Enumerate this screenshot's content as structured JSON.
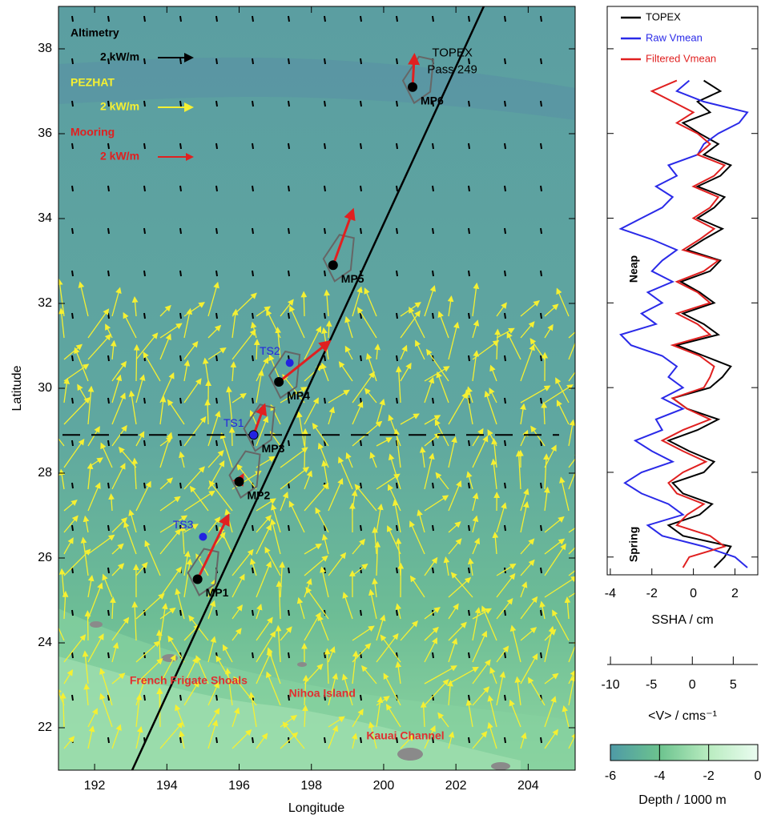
{
  "chart_data": [
    {
      "type": "map",
      "xlabel": "Longitude",
      "ylabel": "Latitude",
      "xlim": [
        191,
        205.3
      ],
      "ylim": [
        21,
        39
      ],
      "xticks": [
        192,
        194,
        196,
        198,
        200,
        202,
        204
      ],
      "yticks": [
        22,
        24,
        26,
        28,
        30,
        32,
        34,
        36,
        38
      ],
      "track": {
        "x": [
          193.04,
          202.77
        ],
        "y": [
          21,
          39
        ],
        "color": "#000000"
      },
      "dashed_latitude": 28.9,
      "legend": [
        {
          "name": "Altimetry",
          "label": "2 kW/m",
          "color": "#000000"
        },
        {
          "name": "PEZHAT",
          "label": "2 kW/m",
          "color": "#f5f032"
        },
        {
          "name": "Mooring",
          "label": "2 kW/m",
          "color": "#e02020"
        }
      ],
      "moorings": [
        {
          "name": "MP1",
          "x": 194.85,
          "y": 25.5,
          "u": 0.85,
          "v": 1.5
        },
        {
          "name": "MP2",
          "x": 196.0,
          "y": 27.8,
          "u": 0.1,
          "v": 0.15
        },
        {
          "name": "MP3",
          "x": 196.4,
          "y": 28.9,
          "u": 0.3,
          "v": 0.7
        },
        {
          "name": "MP4",
          "x": 197.1,
          "y": 30.15,
          "u": 1.4,
          "v": 0.95
        },
        {
          "name": "MP5",
          "x": 198.6,
          "y": 32.9,
          "u": 0.55,
          "v": 1.3
        },
        {
          "name": "MP6",
          "x": 200.8,
          "y": 37.1,
          "u": 0.05,
          "v": 0.75
        }
      ],
      "tide_stations": [
        {
          "name": "TS1",
          "x": 196.4,
          "y": 28.9
        },
        {
          "name": "TS2",
          "x": 197.4,
          "y": 30.6
        },
        {
          "name": "TS3",
          "x": 195.0,
          "y": 26.5
        }
      ],
      "places": [
        {
          "text": "TOPEX",
          "x": 201.9,
          "y": 37.9,
          "color": "#000000"
        },
        {
          "text": "Pass 249",
          "x": 201.9,
          "y": 37.5,
          "color": "#000000"
        },
        {
          "text": "French Frigate Shoals",
          "x": 194.6,
          "y": 23.1,
          "color": "#e03030"
        },
        {
          "text": "Nihoa Island",
          "x": 198.3,
          "y": 22.8,
          "color": "#e03030"
        },
        {
          "text": "Kauai Channel",
          "x": 200.6,
          "y": 21.8,
          "color": "#e03030"
        }
      ]
    },
    {
      "type": "profile",
      "xlabel": "SSHA / cm",
      "xlim": [
        -4.15,
        3.1
      ],
      "xticks": [
        -4,
        -2,
        0,
        2
      ],
      "ylim": [
        25.58,
        39
      ],
      "yticks": [
        26,
        28,
        30,
        32,
        34,
        36,
        38
      ],
      "x2label": "<V> / cms⁻¹",
      "x2lim": [
        -10.4,
        8
      ],
      "x2ticks": [
        -10,
        -5,
        0,
        5
      ],
      "annotations": [
        {
          "text": "Neap",
          "y": 32.8
        },
        {
          "text": "Spring",
          "y": 26.3
        }
      ],
      "y": [
        25.75,
        26.0,
        26.25,
        26.5,
        26.75,
        27.0,
        27.25,
        27.5,
        27.75,
        28.0,
        28.25,
        28.5,
        28.75,
        29.0,
        29.25,
        29.5,
        29.75,
        30.0,
        30.25,
        30.5,
        30.75,
        31.0,
        31.25,
        31.5,
        31.75,
        32.0,
        32.25,
        32.5,
        32.75,
        33.0,
        33.25,
        33.5,
        33.75,
        34.0,
        34.25,
        34.5,
        34.75,
        35.0,
        35.25,
        35.5,
        35.75,
        36.0,
        36.25,
        36.5,
        36.75,
        37.0,
        37.25
      ],
      "series": [
        {
          "name": "TOPEX",
          "color": "#000000",
          "values": [
            1.0,
            1.5,
            1.8,
            -0.5,
            -1.2,
            0.3,
            0.9,
            -0.5,
            -1.0,
            0.5,
            1.0,
            -0.2,
            -1.2,
            0.2,
            1.2,
            -0.3,
            -1.0,
            0.8,
            1.4,
            1.8,
            0.5,
            -0.8,
            1.2,
            0.5,
            -0.5,
            1.0,
            0.3,
            -0.6,
            0.8,
            1.3,
            -0.3,
            0.5,
            1.4,
            0.2,
            1.0,
            1.5,
            0.2,
            1.3,
            1.8,
            0.5,
            1.2,
            0.3,
            -0.5,
            0.8,
            0.2,
            1.3,
            0.5
          ]
        },
        {
          "name": "Raw Vmean",
          "color": "#2a2ae8",
          "values": [
            2.6,
            2.0,
            0.5,
            -1.5,
            -2.2,
            -0.5,
            -1.2,
            -2.5,
            -3.3,
            -2.5,
            -1.0,
            -2.0,
            -2.8,
            -1.5,
            -1.8,
            -0.5,
            -1.5,
            -0.5,
            -1.2,
            -0.8,
            -1.5,
            -3.0,
            -3.5,
            -1.8,
            -2.5,
            -1.5,
            -2.2,
            -1.0,
            -2.0,
            -1.5,
            -0.8,
            -2.0,
            -3.5,
            -2.5,
            -1.5,
            -1.0,
            -1.8,
            -0.8,
            -1.2,
            0.2,
            0.5,
            1.2,
            2.2,
            2.6,
            0.5,
            -0.8,
            -0.2
          ]
        },
        {
          "name": "Filtered Vmean",
          "color": "#e02020",
          "values": [
            -0.5,
            -0.2,
            1.5,
            0.8,
            -0.8,
            -0.3,
            0.5,
            -0.8,
            -1.2,
            -0.5,
            0.6,
            -0.5,
            -1.5,
            -0.5,
            0.8,
            -0.3,
            -1.0,
            0.5,
            0.8,
            1.0,
            0.3,
            -1.0,
            0.8,
            0.2,
            -0.8,
            0.8,
            0.2,
            -0.8,
            0.5,
            1.2,
            -0.5,
            0.3,
            1.0,
            0.0,
            0.8,
            1.2,
            0.0,
            1.0,
            1.5,
            0.2,
            0.8,
            0.2,
            -0.8,
            0.0,
            -1.0,
            -2.0,
            -0.8
          ]
        }
      ]
    },
    {
      "type": "colorbar",
      "xlabel": "Depth / 1000 m",
      "xlim": [
        -6,
        0
      ],
      "xticks": [
        -6,
        -4,
        -2,
        0
      ],
      "colors": [
        "#4e9aa6",
        "#6cc38e",
        "#b9ecc0",
        "#eafcf0"
      ]
    }
  ]
}
